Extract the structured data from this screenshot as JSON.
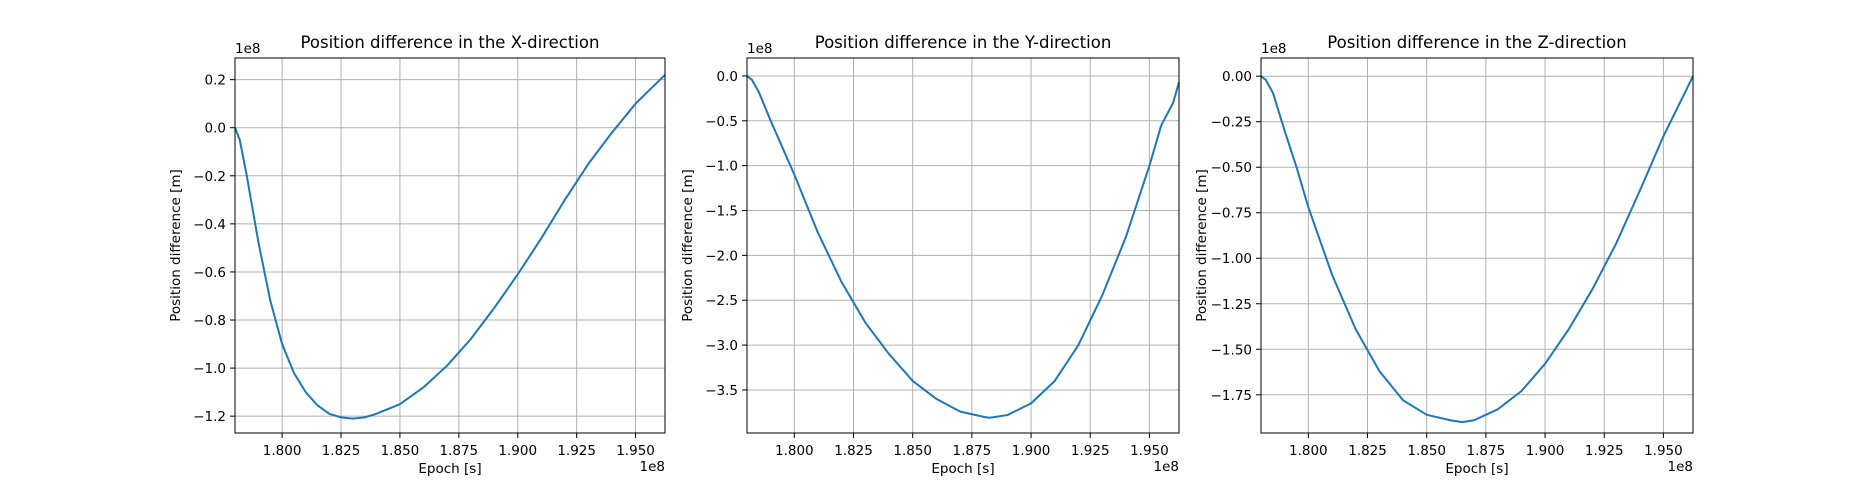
{
  "chart_data": [
    {
      "type": "line",
      "title": "Position difference in the X-direction",
      "xlabel": "Epoch [s]",
      "ylabel": "Position difference [m]",
      "x_offset_label": "1e8",
      "y_offset_label": "1e8",
      "xlim": [
        1.78,
        1.9625
      ],
      "ylim": [
        -1.27,
        0.29
      ],
      "xticks": [
        1.8,
        1.825,
        1.85,
        1.875,
        1.9,
        1.925,
        1.95
      ],
      "xtick_labels": [
        "1.800",
        "1.825",
        "1.850",
        "1.875",
        "1.900",
        "1.925",
        "1.950"
      ],
      "yticks": [
        0.2,
        0.0,
        -0.2,
        -0.4,
        -0.6,
        -0.8,
        -1.0,
        -1.2
      ],
      "ytick_labels": [
        "0.2",
        "0.0",
        "−0.2",
        "−0.4",
        "−0.6",
        "−0.8",
        "−1.0",
        "−1.2"
      ],
      "grid": true,
      "color": "#1f77b4",
      "series": [
        {
          "x": [
            1.78,
            1.782,
            1.785,
            1.79,
            1.795,
            1.8,
            1.805,
            1.81,
            1.815,
            1.82,
            1.825,
            1.83,
            1.835,
            1.84,
            1.85,
            1.86,
            1.87,
            1.88,
            1.89,
            1.9,
            1.91,
            1.92,
            1.93,
            1.94,
            1.95,
            1.9625
          ],
          "y": [
            0.0,
            -0.05,
            -0.2,
            -0.48,
            -0.72,
            -0.9,
            -1.02,
            -1.1,
            -1.155,
            -1.19,
            -1.205,
            -1.21,
            -1.205,
            -1.19,
            -1.15,
            -1.08,
            -0.99,
            -0.88,
            -0.75,
            -0.61,
            -0.46,
            -0.3,
            -0.15,
            -0.02,
            0.1,
            0.22
          ]
        }
      ]
    },
    {
      "type": "line",
      "title": "Position difference in the Y-direction",
      "xlabel": "Epoch [s]",
      "ylabel": "Position difference [m]",
      "x_offset_label": "1e8",
      "y_offset_label": "1e8",
      "xlim": [
        1.78,
        1.9625
      ],
      "ylim": [
        -3.98,
        0.2
      ],
      "xticks": [
        1.8,
        1.825,
        1.85,
        1.875,
        1.9,
        1.925,
        1.95
      ],
      "xtick_labels": [
        "1.800",
        "1.825",
        "1.850",
        "1.875",
        "1.900",
        "1.925",
        "1.950"
      ],
      "yticks": [
        0.0,
        -0.5,
        -1.0,
        -1.5,
        -2.0,
        -2.5,
        -3.0,
        -3.5
      ],
      "ytick_labels": [
        "0.0",
        "−0.5",
        "−1.0",
        "−1.5",
        "−2.0",
        "−2.5",
        "−3.0",
        "−3.5"
      ],
      "grid": true,
      "color": "#1f77b4",
      "series": [
        {
          "x": [
            1.78,
            1.782,
            1.785,
            1.79,
            1.8,
            1.81,
            1.82,
            1.83,
            1.84,
            1.85,
            1.86,
            1.87,
            1.88,
            1.8825,
            1.89,
            1.9,
            1.91,
            1.92,
            1.93,
            1.94,
            1.95,
            1.955,
            1.96,
            1.9625
          ],
          "y": [
            0.0,
            -0.04,
            -0.18,
            -0.5,
            -1.1,
            -1.75,
            -2.3,
            -2.75,
            -3.1,
            -3.4,
            -3.6,
            -3.74,
            -3.8,
            -3.81,
            -3.78,
            -3.65,
            -3.4,
            -3.0,
            -2.45,
            -1.8,
            -1.0,
            -0.55,
            -0.3,
            -0.07
          ]
        }
      ]
    },
    {
      "type": "line",
      "title": "Position difference in the Z-direction",
      "xlabel": "Epoch [s]",
      "ylabel": "Position difference [m]",
      "x_offset_label": "1e8",
      "y_offset_label": "1e8",
      "xlim": [
        1.78,
        1.9625
      ],
      "ylim": [
        -1.96,
        0.1
      ],
      "xticks": [
        1.8,
        1.825,
        1.85,
        1.875,
        1.9,
        1.925,
        1.95
      ],
      "xtick_labels": [
        "1.800",
        "1.825",
        "1.850",
        "1.875",
        "1.900",
        "1.925",
        "1.950"
      ],
      "yticks": [
        0.0,
        -0.25,
        -0.5,
        -0.75,
        -1.0,
        -1.25,
        -1.5,
        -1.75
      ],
      "ytick_labels": [
        "0.00",
        "−0.25",
        "−0.50",
        "−0.75",
        "−1.00",
        "−1.25",
        "−1.50",
        "−1.75"
      ],
      "grid": true,
      "color": "#1f77b4",
      "series": [
        {
          "x": [
            1.78,
            1.782,
            1.785,
            1.79,
            1.795,
            1.8,
            1.81,
            1.82,
            1.83,
            1.84,
            1.85,
            1.86,
            1.865,
            1.87,
            1.88,
            1.89,
            1.9,
            1.91,
            1.92,
            1.93,
            1.94,
            1.95,
            1.9625
          ],
          "y": [
            0.0,
            -0.02,
            -0.09,
            -0.3,
            -0.5,
            -0.72,
            -1.09,
            -1.39,
            -1.62,
            -1.78,
            -1.86,
            -1.89,
            -1.9,
            -1.89,
            -1.83,
            -1.73,
            -1.58,
            -1.39,
            -1.17,
            -0.92,
            -0.63,
            -0.33,
            0.0
          ]
        }
      ]
    }
  ]
}
